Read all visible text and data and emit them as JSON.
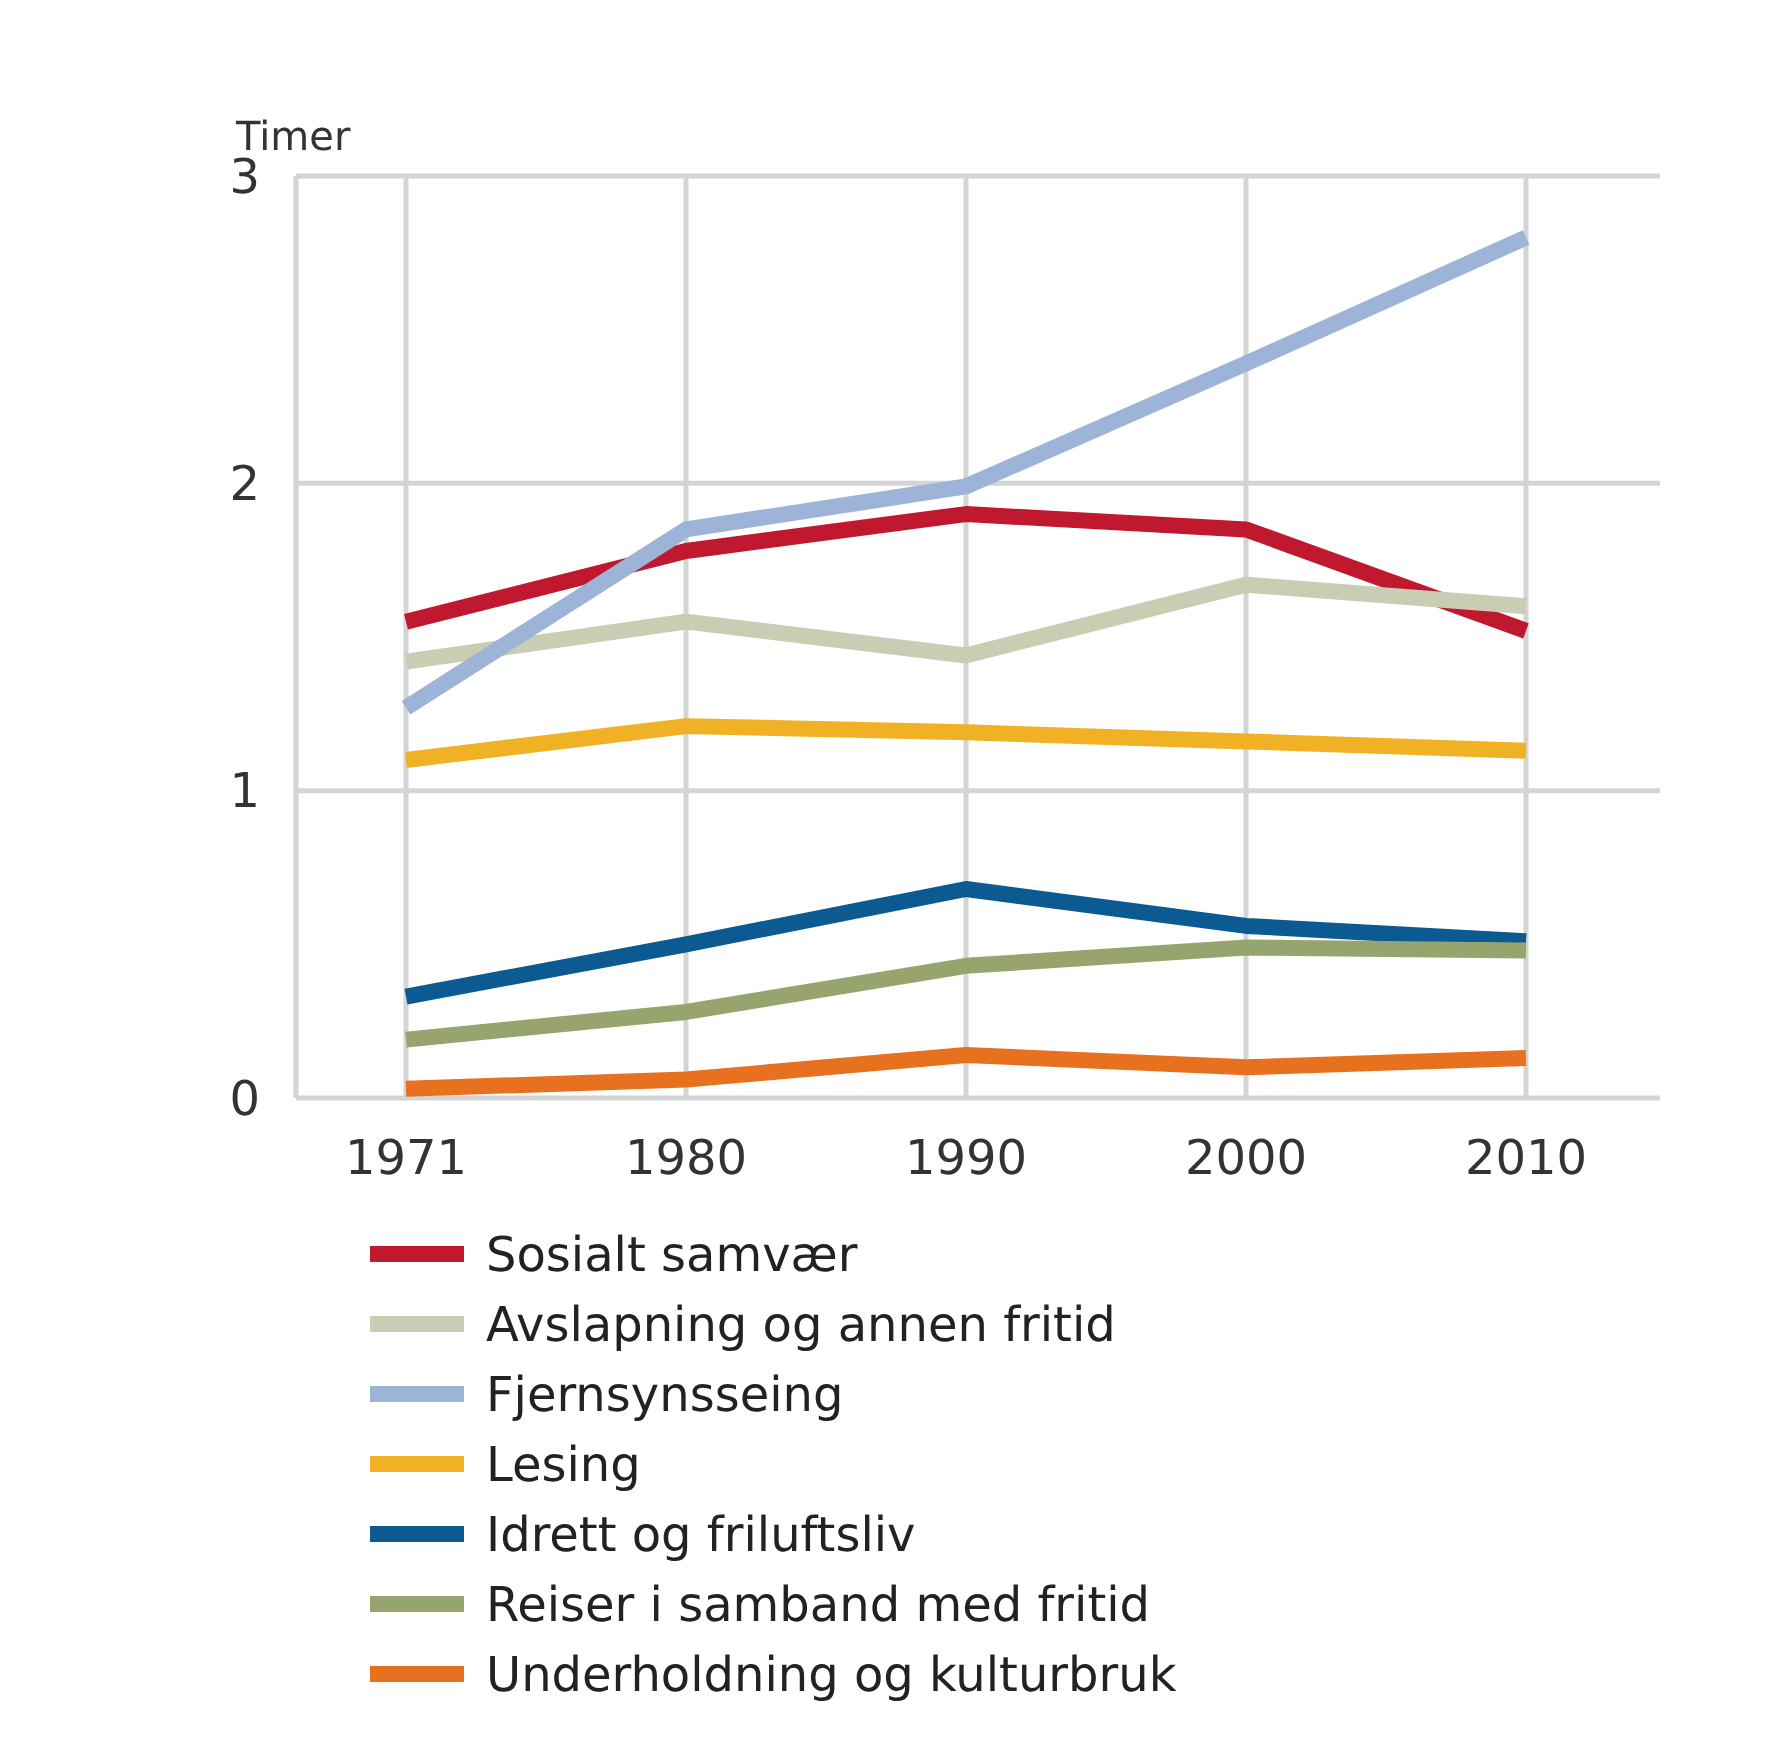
{
  "chart_data": {
    "type": "line",
    "ylabel": "Timer",
    "categories": [
      "1971",
      "1980",
      "1990",
      "2000",
      "2010"
    ],
    "ylim": [
      0,
      3
    ],
    "yticks": [
      0,
      1,
      2,
      3
    ],
    "grid": true,
    "legend": "bottom",
    "marker": "none",
    "line_style": "solid",
    "series": [
      {
        "name": "Sosialt samvær",
        "color": "#c0182e",
        "values": [
          1.55,
          1.78,
          1.9,
          1.85,
          1.52
        ]
      },
      {
        "name": "Avslapning og annen fritid",
        "color": "#c9cdb4",
        "values": [
          1.42,
          1.55,
          1.44,
          1.67,
          1.6
        ]
      },
      {
        "name": "Fjernsynsseing",
        "color": "#9db4d8",
        "values": [
          1.27,
          1.85,
          1.99,
          2.39,
          2.8
        ]
      },
      {
        "name": "Lesing",
        "color": "#f0b224",
        "values": [
          1.1,
          1.21,
          1.19,
          1.16,
          1.13
        ]
      },
      {
        "name": "Idrett og friluftsliv",
        "color": "#0b5a91",
        "values": [
          0.33,
          0.5,
          0.68,
          0.56,
          0.51
        ]
      },
      {
        "name": "Reiser i samband med fritid",
        "color": "#97a46e",
        "values": [
          0.19,
          0.28,
          0.43,
          0.49,
          0.48
        ]
      },
      {
        "name": "Underholdning og kulturbruk",
        "color": "#e8711f",
        "values": [
          0.03,
          0.06,
          0.14,
          0.1,
          0.13
        ]
      }
    ]
  }
}
